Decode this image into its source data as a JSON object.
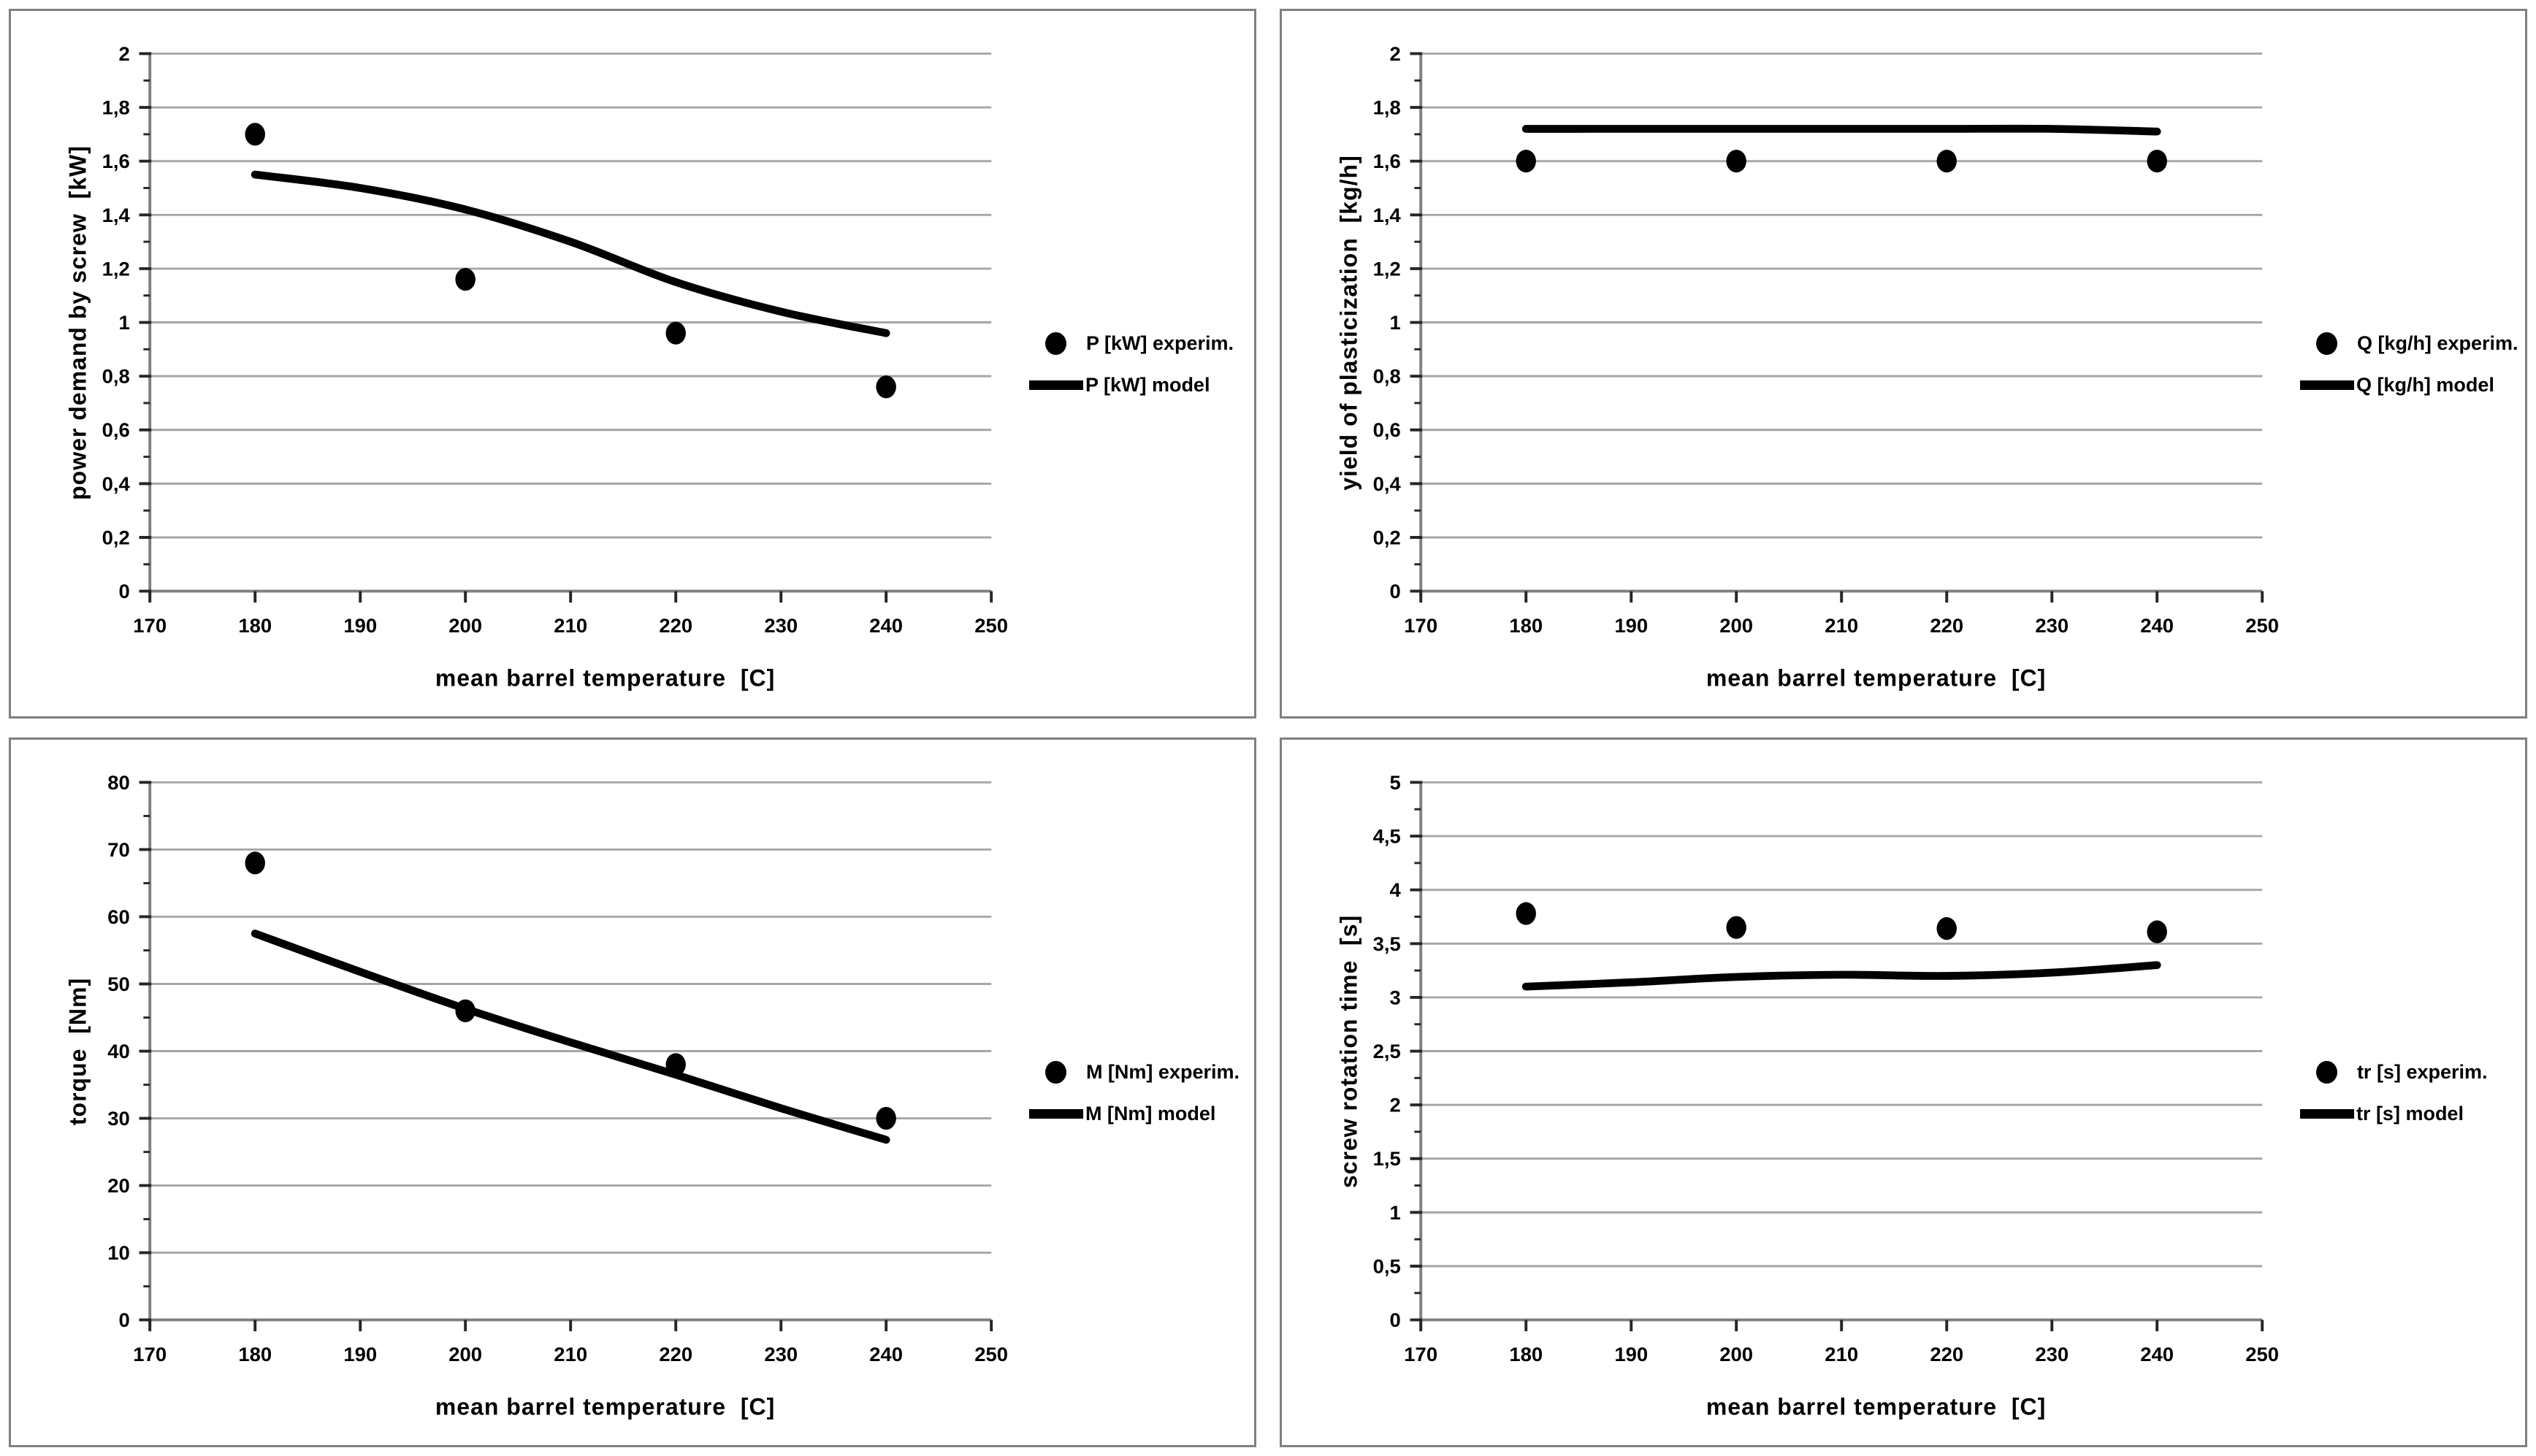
{
  "styles": {
    "background": "#ffffff",
    "grid_color": "#a6a6a6",
    "axis_color": "#808080",
    "tick_color": "#262626",
    "label_color": "#000000",
    "series_color": "#000000",
    "panel_border_color": "#808080"
  },
  "chart_data": [
    {
      "name": "power-demand",
      "type": "scatter",
      "ylabel": "power demand by screw  [kW]",
      "xlabel": "mean barrel temperature  [C]",
      "xlim": [
        170,
        250
      ],
      "ylim": [
        0,
        2
      ],
      "grid": "horizontal",
      "legend_position": "right-middle",
      "xticks": {
        "values": [
          170,
          180,
          190,
          200,
          210,
          220,
          230,
          240,
          250
        ],
        "labels": [
          "170",
          "180",
          "190",
          "200",
          "210",
          "220",
          "230",
          "240",
          "250"
        ]
      },
      "yticks": {
        "values": [
          0,
          0.2,
          0.4,
          0.6,
          0.8,
          1,
          1.2,
          1.4,
          1.6,
          1.8,
          2
        ],
        "labels": [
          "0",
          "0,2",
          "0,4",
          "0,6",
          "0,8",
          "1",
          "1,2",
          "1,4",
          "1,6",
          "1,8",
          "2"
        ]
      },
      "series": [
        {
          "name": "P [kW] experim.",
          "kind": "points",
          "x": [
            180,
            200,
            220,
            240
          ],
          "y": [
            1.7,
            1.16,
            0.96,
            0.76
          ]
        },
        {
          "name": "P [kW] model",
          "kind": "line",
          "x": [
            180,
            190,
            200,
            210,
            220,
            230,
            240
          ],
          "y": [
            1.55,
            1.5,
            1.42,
            1.3,
            1.15,
            1.04,
            0.96
          ]
        }
      ]
    },
    {
      "name": "plasticization-yield",
      "type": "scatter",
      "ylabel": "yield of plasticization  [kg/h]",
      "xlabel": "mean barrel temperature  [C]",
      "xlim": [
        170,
        250
      ],
      "ylim": [
        0,
        2
      ],
      "grid": "horizontal",
      "legend_position": "right-middle",
      "xticks": {
        "values": [
          170,
          180,
          190,
          200,
          210,
          220,
          230,
          240,
          250
        ],
        "labels": [
          "170",
          "180",
          "190",
          "200",
          "210",
          "220",
          "230",
          "240",
          "250"
        ]
      },
      "yticks": {
        "values": [
          0,
          0.2,
          0.4,
          0.6,
          0.8,
          1,
          1.2,
          1.4,
          1.6,
          1.8,
          2
        ],
        "labels": [
          "0",
          "0,2",
          "0,4",
          "0,6",
          "0,8",
          "1",
          "1,2",
          "1,4",
          "1,6",
          "1,8",
          "2"
        ]
      },
      "series": [
        {
          "name": "Q [kg/h] experim.",
          "kind": "points",
          "x": [
            180,
            200,
            220,
            240
          ],
          "y": [
            1.6,
            1.6,
            1.6,
            1.6
          ]
        },
        {
          "name": "Q [kg/h] model",
          "kind": "line",
          "x": [
            180,
            190,
            200,
            210,
            220,
            230,
            240
          ],
          "y": [
            1.72,
            1.72,
            1.72,
            1.72,
            1.72,
            1.72,
            1.71
          ]
        }
      ]
    },
    {
      "name": "torque",
      "type": "scatter",
      "ylabel": "torque  [Nm]",
      "xlabel": "mean barrel temperature  [C]",
      "xlim": [
        170,
        250
      ],
      "ylim": [
        0,
        80
      ],
      "grid": "horizontal",
      "legend_position": "right-middle",
      "xticks": {
        "values": [
          170,
          180,
          190,
          200,
          210,
          220,
          230,
          240,
          250
        ],
        "labels": [
          "170",
          "180",
          "190",
          "200",
          "210",
          "220",
          "230",
          "240",
          "250"
        ]
      },
      "yticks": {
        "values": [
          0,
          10,
          20,
          30,
          40,
          50,
          60,
          70,
          80
        ],
        "labels": [
          "0",
          "10",
          "20",
          "30",
          "40",
          "50",
          "60",
          "70",
          "80"
        ]
      },
      "series": [
        {
          "name": "M [Nm] experim.",
          "kind": "points",
          "x": [
            180,
            200,
            220,
            240
          ],
          "y": [
            68,
            46,
            38,
            30
          ]
        },
        {
          "name": "M [Nm] model",
          "kind": "line",
          "x": [
            180,
            190,
            200,
            210,
            220,
            230,
            240
          ],
          "y": [
            57.5,
            51.8,
            46.3,
            41.3,
            36.5,
            31.5,
            26.8
          ]
        }
      ]
    },
    {
      "name": "screw-rotation-time",
      "type": "scatter",
      "ylabel": "screw rotation time  [s]",
      "xlabel": "mean barrel temperature  [C]",
      "xlim": [
        170,
        250
      ],
      "ylim": [
        0,
        5
      ],
      "grid": "horizontal",
      "legend_position": "right-middle",
      "xticks": {
        "values": [
          170,
          180,
          190,
          200,
          210,
          220,
          230,
          240,
          250
        ],
        "labels": [
          "170",
          "180",
          "190",
          "200",
          "210",
          "220",
          "230",
          "240",
          "250"
        ]
      },
      "yticks": {
        "values": [
          0,
          0.5,
          1,
          1.5,
          2,
          2.5,
          3,
          3.5,
          4,
          4.5,
          5
        ],
        "labels": [
          "0",
          "0,5",
          "1",
          "1,5",
          "2",
          "2,5",
          "3",
          "3,5",
          "4",
          "4,5",
          "5"
        ]
      },
      "series": [
        {
          "name": "tr [s] experim.",
          "kind": "points",
          "x": [
            180,
            200,
            220,
            240
          ],
          "y": [
            3.78,
            3.65,
            3.64,
            3.61
          ]
        },
        {
          "name": "tr [s] model",
          "kind": "line",
          "x": [
            180,
            190,
            200,
            210,
            220,
            230,
            240
          ],
          "y": [
            3.1,
            3.14,
            3.19,
            3.21,
            3.2,
            3.23,
            3.3
          ]
        }
      ]
    }
  ]
}
